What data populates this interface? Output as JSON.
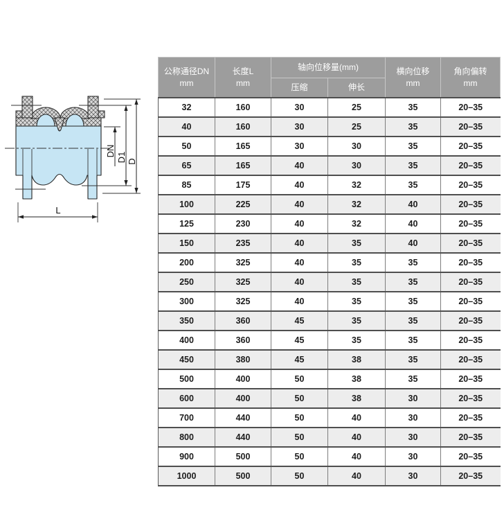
{
  "diagram": {
    "name": "double-sphere rubber expansion joint section view",
    "labels": {
      "dn": "DN",
      "d1": "D1",
      "d": "D",
      "l": "L"
    },
    "colors": {
      "body_fill": "#c6e5f4",
      "hatch_fill": "#d8d8d8",
      "line": "#222222"
    }
  },
  "table": {
    "header": {
      "col1_line1": "公称通径DN",
      "col1_line2": "mm",
      "col2_line1": "长度L",
      "col2_line2": "mm",
      "axial_title": "轴向位移量(mm)",
      "axial_sub_compress": "压缩",
      "axial_sub_extend": "伸长",
      "col5_line1": "横向位移",
      "col5_line2": "mm",
      "col6_line1": "角向偏转",
      "col6_line2": "mm"
    },
    "rows": [
      [
        "32",
        "160",
        "30",
        "25",
        "35",
        "20–35"
      ],
      [
        "40",
        "160",
        "30",
        "25",
        "35",
        "20–35"
      ],
      [
        "50",
        "165",
        "30",
        "30",
        "35",
        "20–35"
      ],
      [
        "65",
        "165",
        "40",
        "30",
        "35",
        "20–35"
      ],
      [
        "85",
        "175",
        "40",
        "32",
        "35",
        "20–35"
      ],
      [
        "100",
        "225",
        "40",
        "32",
        "40",
        "20–35"
      ],
      [
        "125",
        "230",
        "40",
        "32",
        "40",
        "20–35"
      ],
      [
        "150",
        "235",
        "40",
        "35",
        "40",
        "20–35"
      ],
      [
        "200",
        "325",
        "40",
        "35",
        "35",
        "20–35"
      ],
      [
        "250",
        "325",
        "40",
        "35",
        "35",
        "20–35"
      ],
      [
        "300",
        "325",
        "40",
        "35",
        "35",
        "20–35"
      ],
      [
        "350",
        "360",
        "45",
        "35",
        "35",
        "20–35"
      ],
      [
        "400",
        "360",
        "45",
        "35",
        "35",
        "20–35"
      ],
      [
        "450",
        "380",
        "45",
        "38",
        "35",
        "20–35"
      ],
      [
        "500",
        "400",
        "50",
        "38",
        "35",
        "20–35"
      ],
      [
        "600",
        "400",
        "50",
        "38",
        "30",
        "20–35"
      ],
      [
        "700",
        "440",
        "50",
        "40",
        "30",
        "20–35"
      ],
      [
        "800",
        "440",
        "50",
        "40",
        "30",
        "20–35"
      ],
      [
        "900",
        "500",
        "50",
        "40",
        "30",
        "20–35"
      ],
      [
        "1000",
        "500",
        "50",
        "40",
        "30",
        "20–35"
      ]
    ],
    "colors": {
      "header_bg": "#9d9d9d",
      "header_text": "#ffffff",
      "row_alt_bg": "#ededed",
      "grid_heavy": "#4e4e4e",
      "grid_light": "#7d7d7d",
      "cell_text": "#1c1c1c"
    }
  }
}
